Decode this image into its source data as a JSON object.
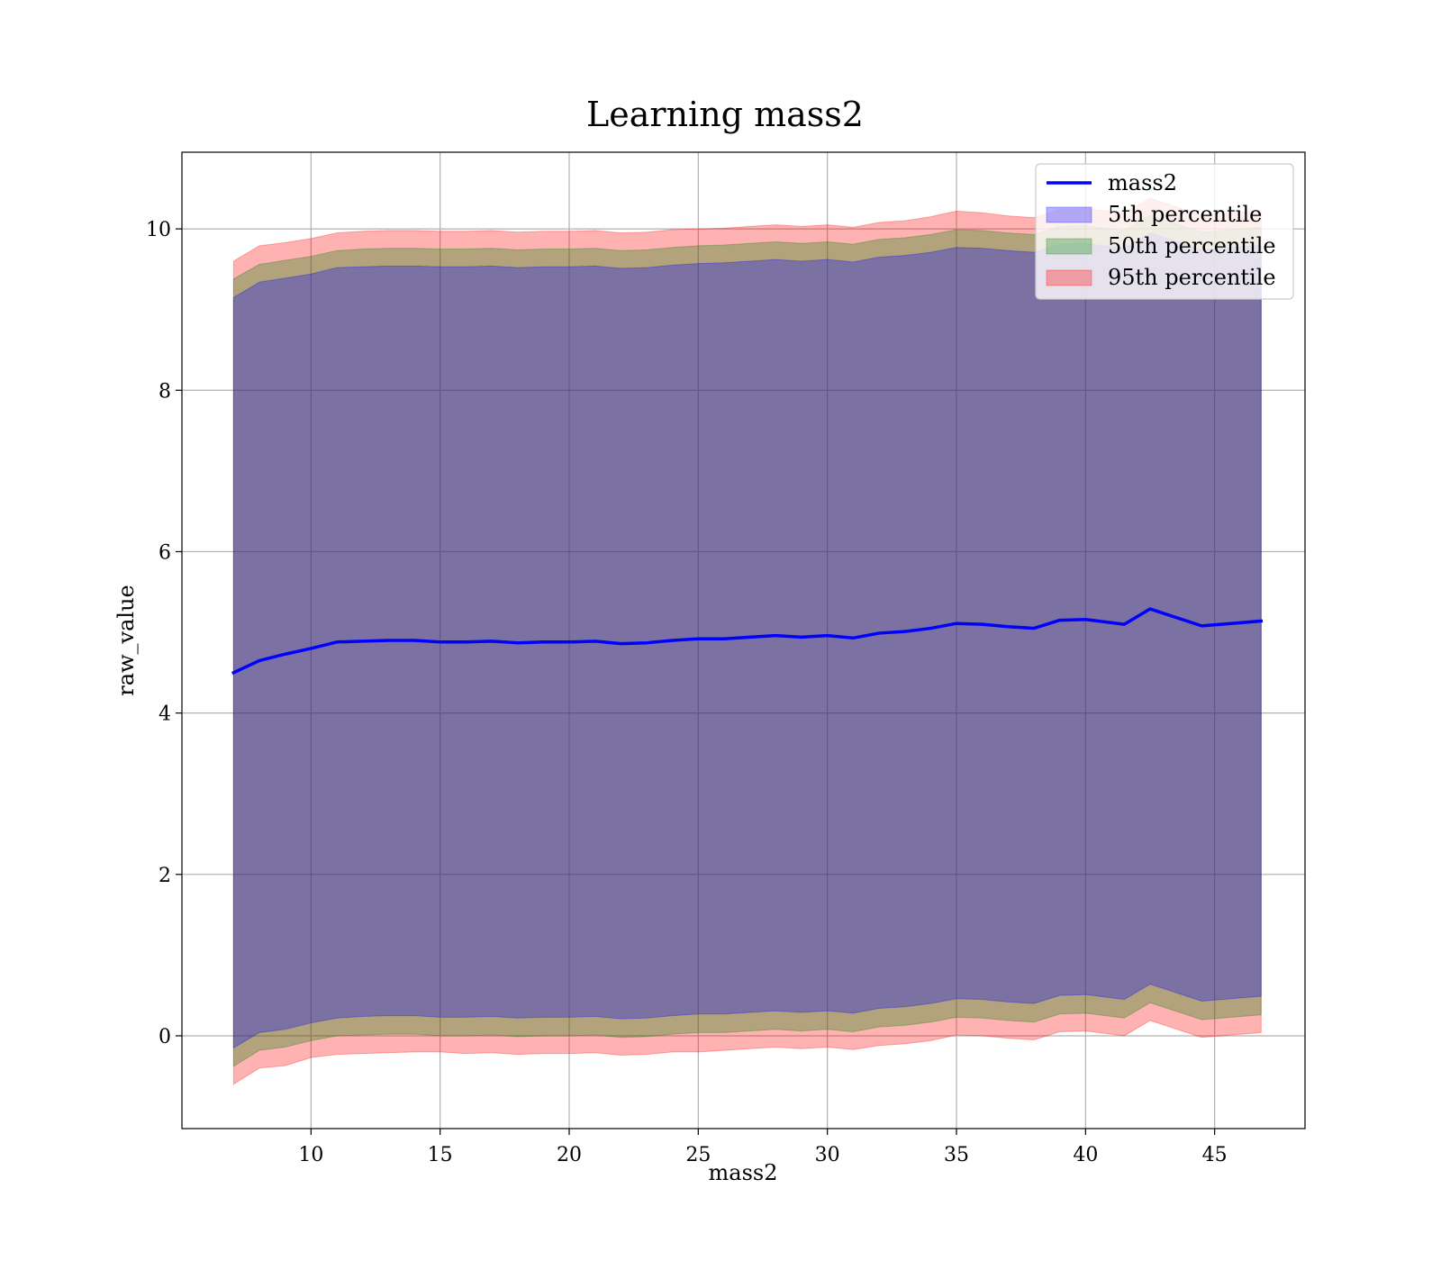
{
  "chart_data": {
    "type": "area",
    "title": "Learning mass2",
    "xlabel": "mass2",
    "ylabel": "raw_value",
    "xlim": [
      5.0,
      48.5
    ],
    "ylim": [
      -1.15,
      10.95
    ],
    "xticks": [
      10,
      15,
      20,
      25,
      30,
      35,
      40,
      45
    ],
    "yticks": [
      0,
      2,
      4,
      6,
      8,
      10
    ],
    "grid": true,
    "legend_position": "top-right",
    "x": [
      7.0,
      8.0,
      9.0,
      10.0,
      11.0,
      12.0,
      13.0,
      14.0,
      15.0,
      16.0,
      17.0,
      18.0,
      19.0,
      20.0,
      21.0,
      22.0,
      23.0,
      24.0,
      25.0,
      26.0,
      27.0,
      28.0,
      29.0,
      30.0,
      31.0,
      32.0,
      33.0,
      34.0,
      35.0,
      36.0,
      37.0,
      38.0,
      39.0,
      40.0,
      41.5,
      42.5,
      44.5,
      46.8
    ],
    "line": {
      "name": "mass2",
      "color": "#0000ff",
      "values": [
        4.5,
        4.65,
        4.73,
        4.8,
        4.88,
        4.89,
        4.9,
        4.9,
        4.88,
        4.88,
        4.89,
        4.87,
        4.88,
        4.88,
        4.89,
        4.86,
        4.87,
        4.9,
        4.92,
        4.92,
        4.94,
        4.96,
        4.94,
        4.96,
        4.93,
        4.99,
        5.01,
        5.05,
        5.11,
        5.1,
        5.07,
        5.05,
        5.15,
        5.16,
        5.1,
        5.29,
        5.08,
        5.14
      ]
    },
    "bands": [
      {
        "name": "95th percentile",
        "color": "#ff0000",
        "opacity": 0.3,
        "lower": [
          -0.6,
          -0.4,
          -0.37,
          -0.27,
          -0.23,
          -0.22,
          -0.21,
          -0.2,
          -0.2,
          -0.22,
          -0.21,
          -0.23,
          -0.22,
          -0.22,
          -0.21,
          -0.24,
          -0.23,
          -0.2,
          -0.2,
          -0.18,
          -0.16,
          -0.14,
          -0.16,
          -0.14,
          -0.17,
          -0.12,
          -0.1,
          -0.06,
          0.01,
          0.0,
          -0.03,
          -0.05,
          0.05,
          0.06,
          0.0,
          0.19,
          -0.02,
          0.04
        ],
        "upper": [
          9.6,
          9.79,
          9.83,
          9.88,
          9.95,
          9.97,
          9.98,
          9.98,
          9.97,
          9.97,
          9.98,
          9.96,
          9.97,
          9.97,
          9.98,
          9.95,
          9.96,
          9.99,
          10.0,
          10.01,
          10.03,
          10.05,
          10.03,
          10.05,
          10.02,
          10.08,
          10.1,
          10.15,
          10.22,
          10.2,
          10.16,
          10.14,
          10.24,
          10.25,
          10.2,
          10.38,
          10.17,
          10.23
        ]
      },
      {
        "name": "50th percentile",
        "color": "#008000",
        "opacity": 0.3,
        "lower": [
          -0.38,
          -0.18,
          -0.14,
          -0.06,
          0.0,
          0.01,
          0.02,
          0.02,
          0.0,
          0.0,
          0.01,
          -0.01,
          0.0,
          0.0,
          0.01,
          -0.02,
          -0.01,
          0.02,
          0.04,
          0.04,
          0.06,
          0.08,
          0.06,
          0.08,
          0.05,
          0.11,
          0.13,
          0.17,
          0.23,
          0.22,
          0.19,
          0.17,
          0.27,
          0.28,
          0.22,
          0.41,
          0.2,
          0.26
        ],
        "upper": [
          9.38,
          9.56,
          9.61,
          9.66,
          9.73,
          9.75,
          9.76,
          9.76,
          9.75,
          9.75,
          9.76,
          9.74,
          9.75,
          9.75,
          9.76,
          9.73,
          9.74,
          9.77,
          9.79,
          9.8,
          9.82,
          9.84,
          9.82,
          9.84,
          9.81,
          9.87,
          9.89,
          9.93,
          9.99,
          9.98,
          9.95,
          9.93,
          10.03,
          10.04,
          9.98,
          10.17,
          9.96,
          10.02
        ]
      },
      {
        "name": "5th percentile",
        "color": "#0000ff",
        "opacity": 0.3,
        "lower": [
          -0.15,
          0.04,
          0.08,
          0.16,
          0.22,
          0.24,
          0.25,
          0.25,
          0.23,
          0.23,
          0.24,
          0.22,
          0.23,
          0.23,
          0.24,
          0.21,
          0.22,
          0.25,
          0.27,
          0.27,
          0.29,
          0.31,
          0.29,
          0.31,
          0.28,
          0.34,
          0.36,
          0.4,
          0.46,
          0.45,
          0.42,
          0.4,
          0.5,
          0.51,
          0.45,
          0.64,
          0.43,
          0.49
        ],
        "upper": [
          9.15,
          9.34,
          9.39,
          9.44,
          9.52,
          9.53,
          9.54,
          9.54,
          9.53,
          9.53,
          9.54,
          9.52,
          9.53,
          9.53,
          9.54,
          9.51,
          9.52,
          9.55,
          9.57,
          9.58,
          9.6,
          9.62,
          9.6,
          9.62,
          9.59,
          9.65,
          9.67,
          9.71,
          9.77,
          9.76,
          9.73,
          9.71,
          9.81,
          9.82,
          9.76,
          9.95,
          9.74,
          9.8
        ]
      }
    ],
    "legend": [
      {
        "label": "mass2",
        "kind": "line",
        "color": "#0000ff"
      },
      {
        "label": "5th percentile",
        "kind": "patch",
        "color": "#0000ff"
      },
      {
        "label": "50th percentile",
        "kind": "patch",
        "color": "#008000"
      },
      {
        "label": "95th percentile",
        "kind": "patch",
        "color": "#ff0000"
      }
    ]
  }
}
